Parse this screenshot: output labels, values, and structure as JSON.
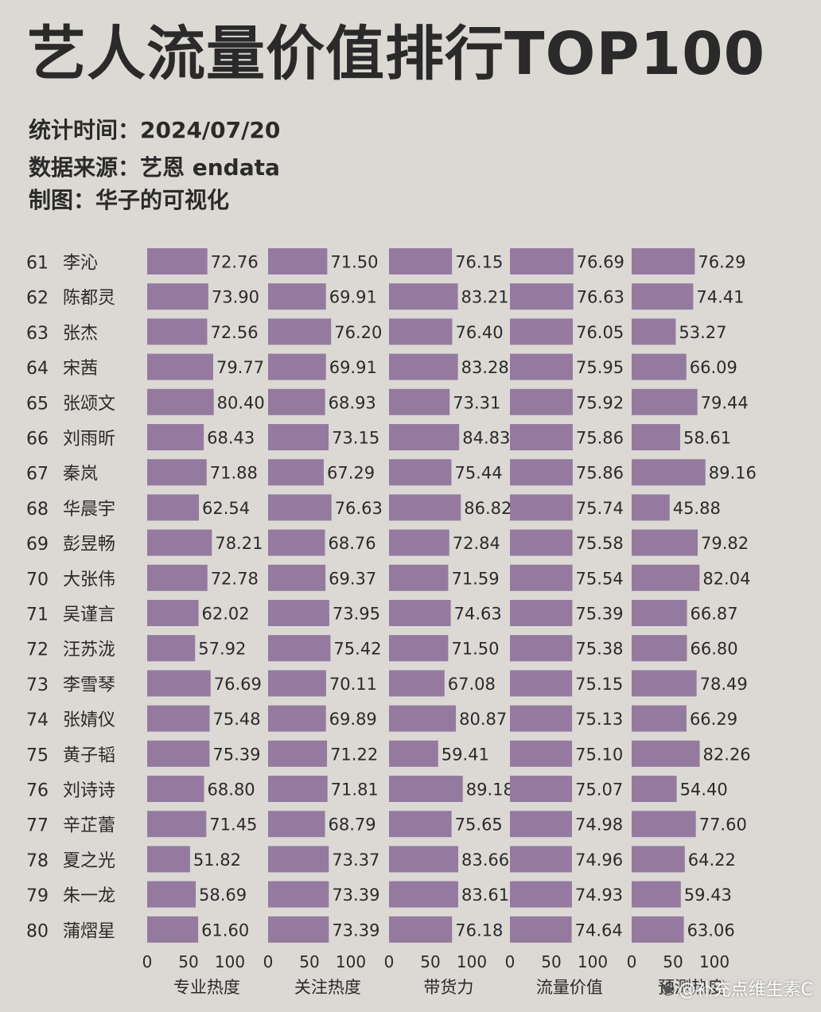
{
  "title": "艺人流量价值排行TOP100",
  "meta": {
    "stat_time": "统计时间：2024/07/20",
    "source": "数据来源：艺恩 endata",
    "made_by": "制图：华子的可视化"
  },
  "watermark": "@补充点维生素C",
  "chart_data": {
    "type": "bar",
    "orientation": "horizontal",
    "bar_color": "#957aa0",
    "xlim": [
      0,
      100
    ],
    "xticks": [
      0,
      50,
      100
    ],
    "grid": false,
    "ranks": [
      61,
      62,
      63,
      64,
      65,
      66,
      67,
      68,
      69,
      70,
      71,
      72,
      73,
      74,
      75,
      76,
      77,
      78,
      79,
      80
    ],
    "categories": [
      "李沁",
      "陈都灵",
      "张杰",
      "宋茜",
      "张颂文",
      "刘雨昕",
      "秦岚",
      "华晨宇",
      "彭昱畅",
      "大张伟",
      "吴谨言",
      "汪苏泷",
      "李雪琴",
      "张婧仪",
      "黄子韬",
      "刘诗诗",
      "辛芷蕾",
      "夏之光",
      "朱一龙",
      "蒲熠星"
    ],
    "series": [
      {
        "name": "专业热度",
        "values": [
          72.76,
          73.9,
          72.56,
          79.77,
          80.4,
          68.43,
          71.88,
          62.54,
          78.21,
          72.78,
          62.02,
          57.92,
          76.69,
          75.48,
          75.39,
          68.8,
          71.45,
          51.82,
          58.69,
          61.6
        ]
      },
      {
        "name": "关注热度",
        "values": [
          71.5,
          69.91,
          76.2,
          69.91,
          68.93,
          73.15,
          67.29,
          76.63,
          68.76,
          69.37,
          73.95,
          75.42,
          70.11,
          69.89,
          71.22,
          71.81,
          68.79,
          73.37,
          73.39,
          73.39
        ]
      },
      {
        "name": "带货力",
        "values": [
          76.15,
          83.21,
          76.4,
          83.28,
          73.31,
          84.83,
          75.44,
          86.82,
          72.84,
          71.59,
          74.63,
          71.5,
          67.08,
          80.87,
          59.41,
          89.18,
          75.65,
          83.66,
          83.61,
          76.18
        ]
      },
      {
        "name": "流量价值",
        "values": [
          76.69,
          76.63,
          76.05,
          75.95,
          75.92,
          75.86,
          75.86,
          75.74,
          75.58,
          75.54,
          75.39,
          75.38,
          75.15,
          75.13,
          75.1,
          75.07,
          74.98,
          74.96,
          74.93,
          74.64
        ]
      },
      {
        "name": "预测热度",
        "values": [
          76.29,
          74.41,
          53.27,
          66.09,
          79.44,
          58.61,
          89.16,
          45.88,
          79.82,
          82.04,
          66.87,
          66.8,
          78.49,
          66.29,
          82.26,
          54.4,
          77.6,
          64.22,
          59.43,
          63.06
        ]
      }
    ]
  }
}
